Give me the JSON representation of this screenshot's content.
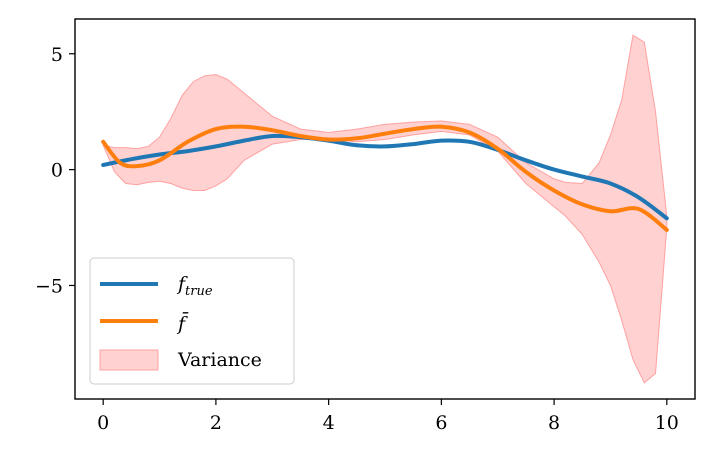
{
  "chart_data": {
    "type": "line",
    "title": "",
    "xlabel": "",
    "ylabel": "",
    "xlim": [
      -0.5,
      10.5
    ],
    "ylim": [
      -9.9,
      6.5
    ],
    "x_ticks": [
      0,
      2,
      4,
      6,
      8,
      10
    ],
    "y_ticks": [
      5,
      0,
      -5
    ],
    "y_tick_labels": [
      "5",
      "0",
      "−5"
    ],
    "grid": false,
    "legend": "lower-left",
    "series": [
      {
        "name": "f",
        "name_subscript": "true",
        "color": "#1f77b4",
        "x": [
          0,
          0.5,
          1,
          1.5,
          2,
          2.5,
          3,
          3.5,
          4,
          4.5,
          5,
          5.5,
          6,
          6.5,
          7,
          7.5,
          8,
          8.5,
          9,
          9.5,
          10
        ],
        "y": [
          0.2,
          0.45,
          0.65,
          0.8,
          1.0,
          1.25,
          1.45,
          1.4,
          1.25,
          1.05,
          1.0,
          1.1,
          1.25,
          1.2,
          0.85,
          0.4,
          0.0,
          -0.3,
          -0.6,
          -1.2,
          -2.1
        ]
      },
      {
        "name": "f̄",
        "color": "#ff7f0e",
        "x": [
          0,
          0.3,
          0.6,
          1,
          1.5,
          2,
          2.5,
          3,
          3.5,
          4,
          4.5,
          5,
          5.5,
          6,
          6.5,
          7,
          7.5,
          8,
          8.5,
          9,
          9.5,
          10
        ],
        "y": [
          1.2,
          0.3,
          0.15,
          0.4,
          1.2,
          1.75,
          1.85,
          1.7,
          1.45,
          1.3,
          1.35,
          1.55,
          1.75,
          1.85,
          1.6,
          0.9,
          -0.1,
          -0.9,
          -1.5,
          -1.8,
          -1.7,
          -2.6
        ]
      }
    ],
    "variance": {
      "name": "Variance",
      "color": "#ff9999",
      "x": [
        0,
        0.2,
        0.4,
        0.6,
        0.8,
        1.0,
        1.2,
        1.4,
        1.6,
        1.8,
        2.0,
        2.2,
        2.5,
        3.0,
        3.5,
        4.0,
        4.5,
        5.0,
        5.5,
        6.0,
        6.5,
        7.0,
        7.5,
        8.0,
        8.2,
        8.5,
        8.8,
        9.0,
        9.2,
        9.4,
        9.6,
        9.8,
        10.0
      ],
      "upper": [
        1.05,
        0.95,
        0.95,
        0.9,
        1.0,
        1.4,
        2.2,
        3.2,
        3.8,
        4.05,
        4.1,
        3.9,
        3.3,
        2.3,
        1.75,
        1.6,
        1.75,
        1.95,
        2.05,
        2.1,
        1.95,
        1.4,
        0.3,
        -0.4,
        -0.55,
        -0.6,
        0.3,
        1.5,
        3.0,
        5.8,
        5.5,
        2.5,
        -2.0
      ],
      "lower": [
        1.05,
        -0.1,
        -0.6,
        -0.65,
        -0.55,
        -0.5,
        -0.6,
        -0.8,
        -0.9,
        -0.9,
        -0.7,
        -0.4,
        0.4,
        1.1,
        1.3,
        1.3,
        1.2,
        1.3,
        1.5,
        1.65,
        1.5,
        0.8,
        -0.6,
        -1.6,
        -2.0,
        -2.8,
        -4.0,
        -5.0,
        -6.5,
        -8.2,
        -9.2,
        -8.8,
        -2.5
      ]
    }
  }
}
